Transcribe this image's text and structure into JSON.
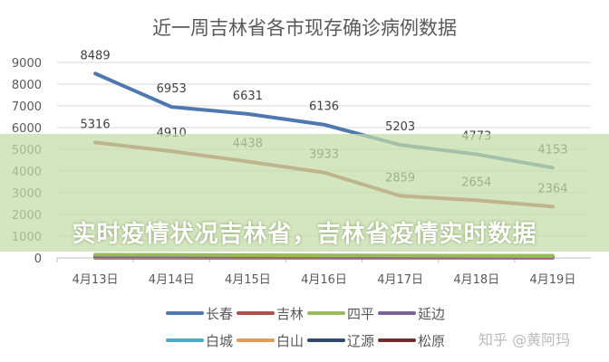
{
  "chart_data": {
    "type": "line",
    "title": "近一周吉林省各市现存确诊病例数据",
    "categories": [
      "4月13日",
      "4月14日",
      "4月15日",
      "4月16日",
      "4月17日",
      "4月18日",
      "4月19日"
    ],
    "ylim": [
      0,
      9000
    ],
    "yticks": [
      0,
      1000,
      2000,
      3000,
      4000,
      5000,
      6000,
      7000,
      8000,
      9000
    ],
    "grid": true,
    "legend_position": "bottom",
    "series": [
      {
        "name": "长春",
        "color": "#4f78b0",
        "values": [
          8489,
          6953,
          6631,
          6136,
          5203,
          4773,
          4153
        ],
        "labels": [
          "8489",
          "6953",
          "6631",
          "6136",
          "5203",
          "4773",
          "4153"
        ]
      },
      {
        "name": "吉林",
        "color": "#b0504c",
        "values": [
          5316,
          4910,
          4438,
          3933,
          2859,
          2654,
          2364
        ],
        "labels": [
          "5316",
          "4910",
          "4438",
          "3933",
          "2859",
          "2654",
          "2364"
        ]
      },
      {
        "name": "四平",
        "color": "#9bbb59",
        "values": [
          150,
          140,
          130,
          120,
          110,
          100,
          90
        ]
      },
      {
        "name": "延边",
        "color": "#7c6397",
        "values": [
          60,
          60,
          55,
          55,
          50,
          50,
          45
        ]
      },
      {
        "name": "白城",
        "color": "#4bacc6",
        "values": [
          80,
          85,
          90,
          95,
          100,
          100,
          100
        ]
      },
      {
        "name": "白山",
        "color": "#e09a5a",
        "values": [
          30,
          30,
          30,
          30,
          30,
          30,
          30
        ]
      },
      {
        "name": "辽源",
        "color": "#2e4a6e",
        "values": [
          20,
          20,
          20,
          25,
          30,
          40,
          50
        ]
      },
      {
        "name": "松原",
        "color": "#6e2e2e",
        "values": [
          10,
          10,
          10,
          10,
          10,
          10,
          10
        ]
      }
    ]
  },
  "banner": {
    "text": "实时疫情状况吉林省，吉林省疫情实时数据"
  },
  "watermark": "知乎 @黄阿玛"
}
